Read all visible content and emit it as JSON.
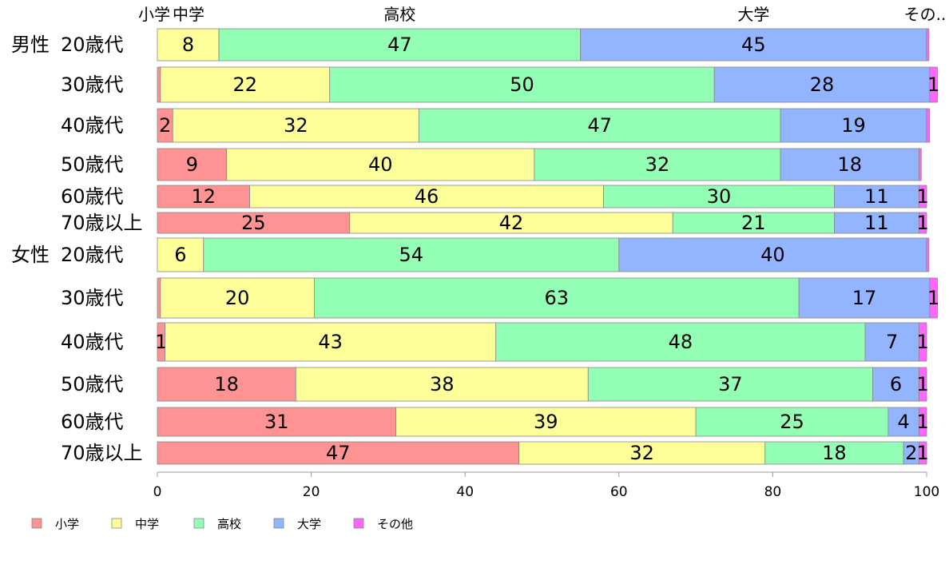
{
  "chart_data": {
    "type": "bar",
    "orientation": "horizontal",
    "stacked": true,
    "categories": [
      {
        "group": "男性",
        "label": "20歳代"
      },
      {
        "group": "",
        "label": "30歳代"
      },
      {
        "group": "",
        "label": "40歳代"
      },
      {
        "group": "",
        "label": "50歳代"
      },
      {
        "group": "",
        "label": "60歳代"
      },
      {
        "group": "",
        "label": "70歳以上"
      },
      {
        "group": "女性",
        "label": "20歳代"
      },
      {
        "group": "",
        "label": "30歳代"
      },
      {
        "group": "",
        "label": "40歳代"
      },
      {
        "group": "",
        "label": "50歳代"
      },
      {
        "group": "",
        "label": "60歳代"
      },
      {
        "group": "",
        "label": "70歳以上"
      }
    ],
    "series": [
      {
        "name": "小学",
        "color": "#ff9393",
        "values": [
          0,
          0.4,
          2,
          9,
          12,
          25,
          0,
          0.4,
          1,
          18,
          31,
          47
        ]
      },
      {
        "name": "中学",
        "color": "#ffff99",
        "values": [
          8,
          22,
          32,
          40,
          46,
          42,
          6,
          20,
          43,
          38,
          39,
          32
        ]
      },
      {
        "name": "高校",
        "color": "#93ffb4",
        "values": [
          47,
          50,
          47,
          32,
          30,
          21,
          54,
          63,
          48,
          37,
          25,
          18
        ]
      },
      {
        "name": "大学",
        "color": "#93b4ff",
        "values": [
          45,
          28,
          19,
          18,
          11,
          11,
          40,
          17,
          7,
          6,
          4,
          2
        ]
      },
      {
        "name": "その他",
        "color": "#ff66ff",
        "values": [
          0.3,
          1,
          0.4,
          0.3,
          1,
          1,
          0.3,
          1,
          1,
          1,
          1,
          1
        ]
      }
    ],
    "data_labels": [
      [
        "",
        "8",
        "47",
        "45",
        ""
      ],
      [
        "",
        "22",
        "50",
        "28",
        "1"
      ],
      [
        "2",
        "32",
        "47",
        "19",
        ""
      ],
      [
        "9",
        "40",
        "32",
        "18",
        ""
      ],
      [
        "12",
        "46",
        "30",
        "11",
        "1"
      ],
      [
        "25",
        "42",
        "21",
        "11",
        "1"
      ],
      [
        "",
        "6",
        "54",
        "40",
        ""
      ],
      [
        "",
        "20",
        "63",
        "17",
        "1"
      ],
      [
        "1",
        "43",
        "48",
        "7",
        "1"
      ],
      [
        "18",
        "38",
        "37",
        "6",
        "1"
      ],
      [
        "31",
        "39",
        "25",
        "4",
        "1"
      ],
      [
        "47",
        "32",
        "18",
        "2",
        "1"
      ]
    ],
    "top_labels": [
      "小学",
      "中学",
      "高校",
      "大学",
      "その.."
    ],
    "x_ticks": [
      "0",
      "20",
      "40",
      "60",
      "80",
      "100"
    ],
    "xlim": [
      0,
      100
    ],
    "grid": false,
    "legend_position": "bottom-left",
    "title": "",
    "xlabel": "",
    "ylabel": ""
  }
}
